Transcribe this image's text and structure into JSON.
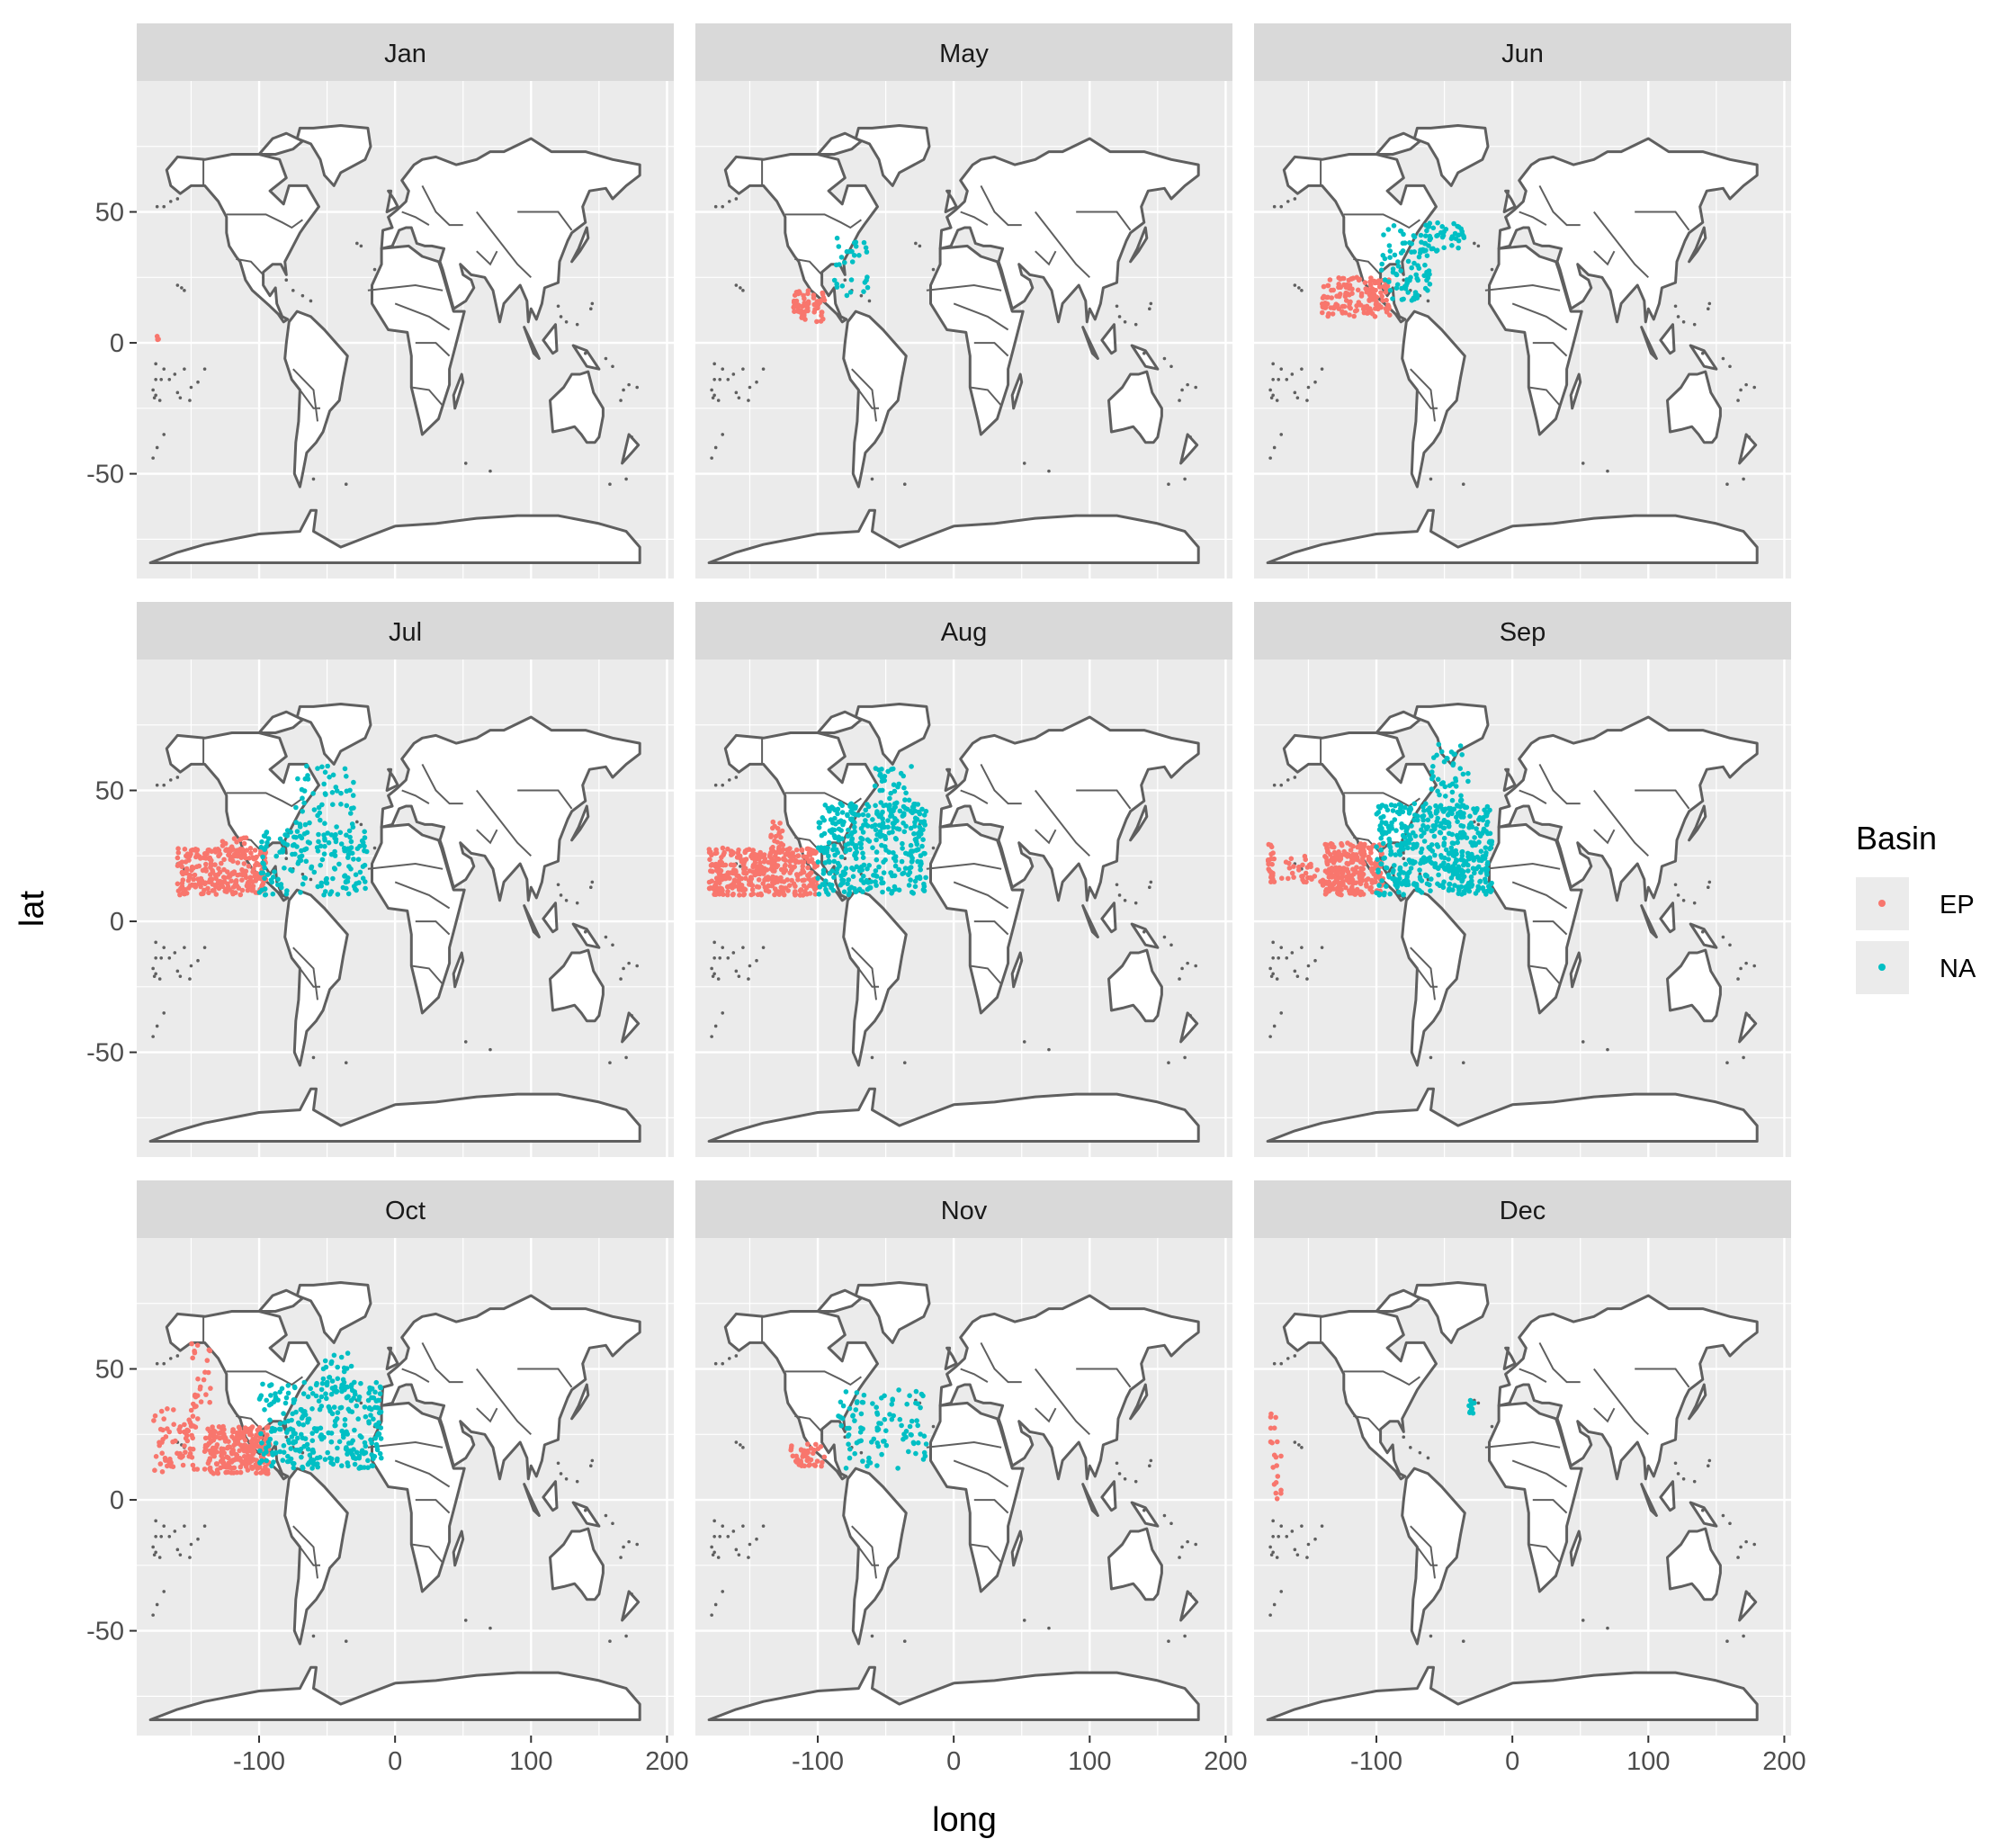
{
  "chart_data": {
    "type": "scatter",
    "layout": "facet_wrap",
    "facet_variable": "month",
    "xlabel": "long",
    "ylabel": "lat",
    "xlim": [
      -190,
      205
    ],
    "ylim": [
      -90,
      100
    ],
    "x_ticks": [
      -100,
      0,
      100,
      200
    ],
    "x_tick_labels": [
      "-100",
      "0",
      "100",
      "200"
    ],
    "y_ticks": [
      -50,
      0,
      50
    ],
    "y_tick_labels": [
      "-50",
      "0",
      "50"
    ],
    "grid": true,
    "background": "#EBEBEB",
    "legend": {
      "title": "Basin",
      "position": "right",
      "entries": [
        {
          "name": "EP",
          "color": "#F8766D"
        },
        {
          "name": "NA",
          "color": "#00BFC4"
        }
      ]
    },
    "basemap": "world-map-outline",
    "panels": [
      {
        "title": "Jan",
        "series": [
          {
            "name": "EP",
            "clusters": [
              {
                "long": [
                  -176,
                  -174
                ],
                "lat": [
                  1,
                  3
                ],
                "n": 3
              }
            ]
          },
          {
            "name": "NA",
            "clusters": []
          }
        ]
      },
      {
        "title": "May",
        "series": [
          {
            "name": "EP",
            "clusters": [
              {
                "long": [
                  -118,
                  -94
                ],
                "lat": [
                  8,
                  20
                ],
                "n": 60
              }
            ]
          },
          {
            "name": "NA",
            "clusters": [
              {
                "long": [
                  -88,
                  -62
                ],
                "lat": [
                  18,
                  40
                ],
                "n": 30
              }
            ]
          }
        ]
      },
      {
        "title": "Jun",
        "series": [
          {
            "name": "EP",
            "clusters": [
              {
                "long": [
                  -140,
                  -90
                ],
                "lat": [
                  10,
                  25
                ],
                "n": 150
              }
            ]
          },
          {
            "name": "NA",
            "clusters": [
              {
                "long": [
                  -98,
                  -60
                ],
                "lat": [
                  16,
                  45
                ],
                "n": 90
              },
              {
                "long": [
                  -65,
                  -35
                ],
                "lat": [
                  35,
                  46
                ],
                "n": 40
              }
            ]
          }
        ]
      },
      {
        "title": "Jul",
        "series": [
          {
            "name": "EP",
            "clusters": [
              {
                "long": [
                  -160,
                  -95
                ],
                "lat": [
                  10,
                  28
                ],
                "n": 260
              },
              {
                "long": [
                  -128,
                  -108
                ],
                "lat": [
                  26,
                  32
                ],
                "n": 20
              }
            ]
          },
          {
            "name": "NA",
            "clusters": [
              {
                "long": [
                  -100,
                  -20
                ],
                "lat": [
                  10,
                  35
                ],
                "n": 160
              },
              {
                "long": [
                  -75,
                  -30
                ],
                "lat": [
                  30,
                  60
                ],
                "n": 60
              }
            ]
          }
        ]
      },
      {
        "title": "Aug",
        "series": [
          {
            "name": "EP",
            "clusters": [
              {
                "long": [
                  -180,
                  -100
                ],
                "lat": [
                  10,
                  28
                ],
                "n": 380
              },
              {
                "long": [
                  -135,
                  -125
                ],
                "lat": [
                  26,
                  38
                ],
                "n": 20
              }
            ]
          },
          {
            "name": "NA",
            "clusters": [
              {
                "long": [
                  -100,
                  -20
                ],
                "lat": [
                  10,
                  45
                ],
                "n": 360
              },
              {
                "long": [
                  -60,
                  -30
                ],
                "lat": [
                  40,
                  60
                ],
                "n": 40
              }
            ]
          }
        ]
      },
      {
        "title": "Sep",
        "series": [
          {
            "name": "EP",
            "clusters": [
              {
                "long": [
                  -140,
                  -95
                ],
                "lat": [
                  10,
                  30
                ],
                "n": 260
              },
              {
                "long": [
                  -180,
                  -175
                ],
                "lat": [
                  15,
                  30
                ],
                "n": 25
              },
              {
                "long": [
                  -170,
                  -140
                ],
                "lat": [
                  15,
                  25
                ],
                "n": 30
              }
            ]
          },
          {
            "name": "NA",
            "clusters": [
              {
                "long": [
                  -100,
                  -15
                ],
                "lat": [
                  10,
                  45
                ],
                "n": 480
              },
              {
                "long": [
                  -60,
                  -30
                ],
                "lat": [
                  40,
                  68
                ],
                "n": 50
              }
            ]
          }
        ]
      },
      {
        "title": "Oct",
        "series": [
          {
            "name": "EP",
            "clusters": [
              {
                "long": [
                  -140,
                  -92
                ],
                "lat": [
                  10,
                  28
                ],
                "n": 260
              },
              {
                "long": [
                  -178,
                  -145
                ],
                "lat": [
                  10,
                  35
                ],
                "n": 70
              },
              {
                "long": [
                  -150,
                  -135
                ],
                "lat": [
                  35,
                  60
                ],
                "n": 25
              }
            ]
          },
          {
            "name": "NA",
            "clusters": [
              {
                "long": [
                  -100,
                  -10
                ],
                "lat": [
                  12,
                  45
                ],
                "n": 300
              },
              {
                "long": [
                  -55,
                  -30
                ],
                "lat": [
                  40,
                  56
                ],
                "n": 30
              }
            ]
          }
        ]
      },
      {
        "title": "Nov",
        "series": [
          {
            "name": "EP",
            "clusters": [
              {
                "long": [
                  -120,
                  -95
                ],
                "lat": [
                  12,
                  22
                ],
                "n": 40
              }
            ]
          },
          {
            "name": "NA",
            "clusters": [
              {
                "long": [
                  -85,
                  -20
                ],
                "lat": [
                  12,
                  42
                ],
                "n": 100
              }
            ]
          }
        ]
      },
      {
        "title": "Dec",
        "series": [
          {
            "name": "EP",
            "clusters": [
              {
                "long": [
                  -178,
                  -170
                ],
                "lat": [
                  0,
                  35
                ],
                "n": 20
              }
            ]
          },
          {
            "name": "NA",
            "clusters": [
              {
                "long": [
                  -32,
                  -28
                ],
                "lat": [
                  33,
                  38
                ],
                "n": 12
              }
            ]
          }
        ]
      }
    ]
  }
}
